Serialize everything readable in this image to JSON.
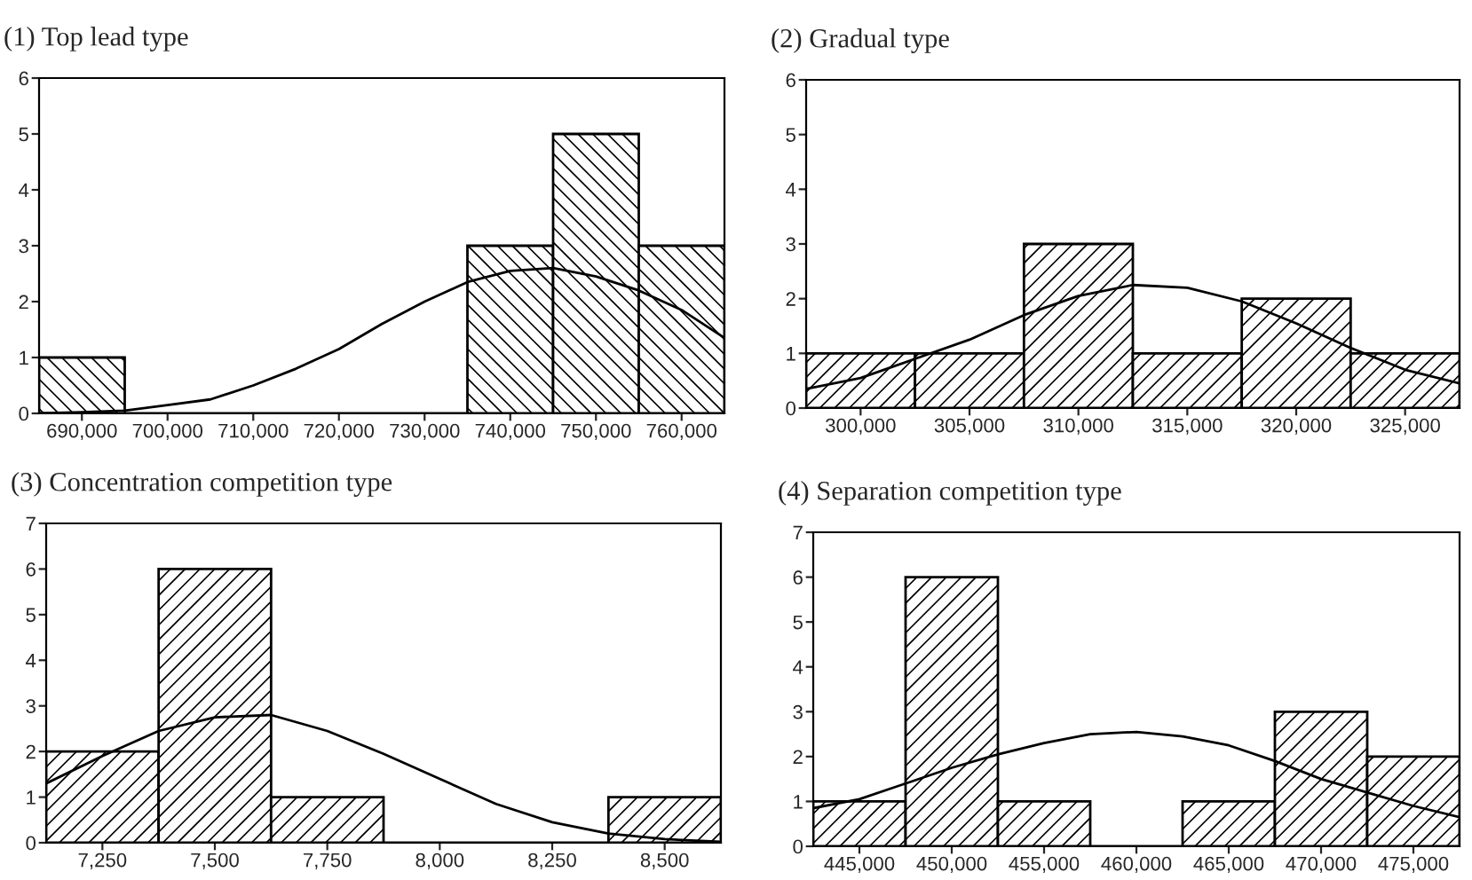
{
  "chart_data": [
    {
      "type": "histogram",
      "title": "(1) Top lead type",
      "xlim": [
        685000,
        765000
      ],
      "ylim": [
        0,
        6
      ],
      "yticks": [
        0,
        1,
        2,
        3,
        4,
        5,
        6
      ],
      "xticks": [
        {
          "value": 690000,
          "label": "690,000"
        },
        {
          "value": 700000,
          "label": "700,000"
        },
        {
          "value": 710000,
          "label": "710,000"
        },
        {
          "value": 720000,
          "label": "720,000"
        },
        {
          "value": 730000,
          "label": "730,000"
        },
        {
          "value": 740000,
          "label": "740,000"
        },
        {
          "value": 750000,
          "label": "750,000"
        },
        {
          "value": 760000,
          "label": "760,000"
        }
      ],
      "grid": false,
      "series": [
        {
          "color": "#000000",
          "bins": [
            685000,
            695000,
            705000,
            715000,
            725000,
            735000,
            745000,
            755000,
            765000
          ],
          "values": [
            1,
            0,
            0,
            0,
            0,
            3,
            5,
            3
          ]
        },
        {
          "type": "line",
          "color": "#000000",
          "x": [
            685000,
            690000,
            695000,
            700000,
            705000,
            710000,
            715000,
            720000,
            725000,
            730000,
            735000,
            740000,
            745000,
            750000,
            755000,
            760000,
            765000
          ],
          "values": [
            0.0,
            0.02,
            0.05,
            0.15,
            0.25,
            0.5,
            0.8,
            1.15,
            1.6,
            2.0,
            2.35,
            2.55,
            2.6,
            2.45,
            2.2,
            1.85,
            1.35
          ]
        }
      ]
    },
    {
      "type": "histogram",
      "title": "(2) Gradual type",
      "xlim": [
        297500,
        327500
      ],
      "ylim": [
        0,
        6
      ],
      "yticks": [
        0,
        1,
        2,
        3,
        4,
        5,
        6
      ],
      "xticks": [
        {
          "value": 300000,
          "label": "300,000"
        },
        {
          "value": 305000,
          "label": "305,000"
        },
        {
          "value": 310000,
          "label": "310,000"
        },
        {
          "value": 315000,
          "label": "315,000"
        },
        {
          "value": 320000,
          "label": "320,000"
        },
        {
          "value": 325000,
          "label": "325,000"
        }
      ],
      "grid": false,
      "series": [
        {
          "color": "#000000",
          "bins": [
            297500,
            302500,
            307500,
            312500,
            317500,
            322500,
            327500
          ],
          "values": [
            1,
            1,
            3,
            1,
            2,
            1
          ]
        },
        {
          "type": "line",
          "color": "#000000",
          "x": [
            297500,
            300000,
            302500,
            305000,
            307500,
            310000,
            312500,
            315000,
            317500,
            320000,
            322500,
            325000,
            327500
          ],
          "values": [
            0.35,
            0.55,
            0.9,
            1.25,
            1.7,
            2.05,
            2.25,
            2.2,
            1.95,
            1.55,
            1.1,
            0.7,
            0.45
          ]
        }
      ]
    },
    {
      "type": "histogram",
      "title": "(3) Concentration competition type",
      "xlim": [
        7125,
        8625
      ],
      "ylim": [
        0,
        7
      ],
      "yticks": [
        0,
        1,
        2,
        3,
        4,
        5,
        6,
        7
      ],
      "xticks": [
        {
          "value": 7250,
          "label": "7,250"
        },
        {
          "value": 7500,
          "label": "7,500"
        },
        {
          "value": 7750,
          "label": "7,750"
        },
        {
          "value": 8000,
          "label": "8,000"
        },
        {
          "value": 8250,
          "label": "8,250"
        },
        {
          "value": 8500,
          "label": "8,500"
        }
      ],
      "grid": false,
      "series": [
        {
          "color": "#000000",
          "bins": [
            7125,
            7375,
            7625,
            7875,
            8125,
            8375,
            8625
          ],
          "values": [
            2,
            6,
            1,
            0,
            0,
            1
          ]
        },
        {
          "type": "line",
          "color": "#000000",
          "x": [
            7125,
            7250,
            7375,
            7500,
            7625,
            7750,
            7875,
            8000,
            8125,
            8250,
            8375,
            8500,
            8625
          ],
          "values": [
            1.3,
            1.9,
            2.45,
            2.75,
            2.8,
            2.45,
            1.95,
            1.4,
            0.85,
            0.45,
            0.2,
            0.08,
            0.02
          ]
        }
      ]
    },
    {
      "type": "histogram",
      "title": "(4) Separation competition type",
      "xlim": [
        442500,
        477500
      ],
      "ylim": [
        0,
        7
      ],
      "yticks": [
        0,
        1,
        2,
        3,
        4,
        5,
        6,
        7
      ],
      "xticks": [
        {
          "value": 445000,
          "label": "445,000"
        },
        {
          "value": 450000,
          "label": "450,000"
        },
        {
          "value": 455000,
          "label": "455,000"
        },
        {
          "value": 460000,
          "label": "460,000"
        },
        {
          "value": 465000,
          "label": "465,000"
        },
        {
          "value": 470000,
          "label": "470,000"
        },
        {
          "value": 475000,
          "label": "475,000"
        }
      ],
      "grid": false,
      "series": [
        {
          "color": "#000000",
          "bins": [
            442500,
            447500,
            452500,
            457500,
            462500,
            467500,
            472500,
            477500
          ],
          "values": [
            1,
            6,
            1,
            0,
            1,
            3,
            2
          ]
        },
        {
          "type": "line",
          "color": "#000000",
          "x": [
            442500,
            445000,
            447500,
            450000,
            452500,
            455000,
            457500,
            460000,
            462500,
            465000,
            467500,
            470000,
            472500,
            475000,
            477500
          ],
          "values": [
            0.85,
            1.05,
            1.4,
            1.75,
            2.05,
            2.3,
            2.5,
            2.55,
            2.45,
            2.25,
            1.9,
            1.5,
            1.2,
            0.9,
            0.65
          ]
        }
      ]
    }
  ]
}
